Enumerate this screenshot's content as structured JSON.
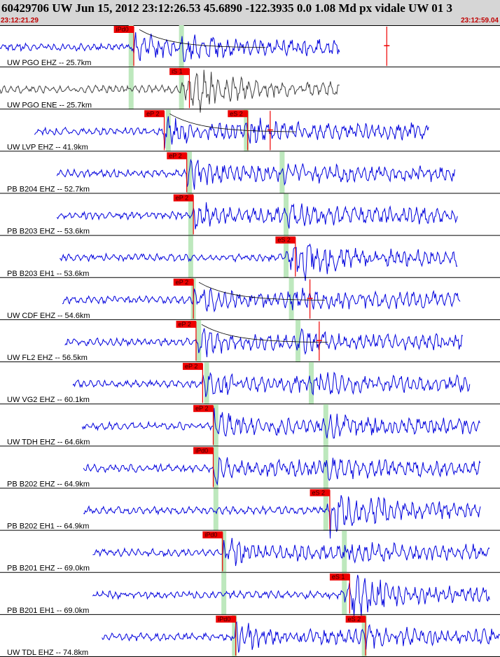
{
  "header": {
    "title": "60429706 UW Jun 15, 2012 23:12:26.53   45.6890 -122.3935  0.0 1.08 Md px vidale UW 01   3",
    "time_start": "23:12:21.29",
    "time_end": "23:12:59.04"
  },
  "colors": {
    "trace": "#0000dd",
    "trace_unused": "#404040",
    "pick_fill": "#ee0000",
    "pick_text": "#330000",
    "green_band": "#bde8bd",
    "separator": "#000000",
    "background": "#ffffff",
    "header_bg": "#d6d6d6",
    "time_label": "#c00000"
  },
  "chart_data": {
    "type": "line",
    "x_unit": "seconds after 23:12:21.29",
    "xlim": [
      0,
      37.75
    ],
    "channels": [
      {
        "label": "UW PGO EHZ -- 25.7km",
        "start": 0,
        "end": 25.7,
        "color": "blue",
        "picks": [
          {
            "label": "iPd0",
            "t": 10.1
          },
          {
            "label": "",
            "t": 29.2
          }
        ],
        "bands": [
          9.9,
          13.7
        ],
        "coda": true
      },
      {
        "label": "UW PGO ENE -- 25.7km",
        "start": 0,
        "end": 25.7,
        "color": "gray",
        "picks": [
          {
            "label": "iS 1",
            "t": 14.3
          }
        ],
        "bands": [
          9.9,
          13.7
        ],
        "coda": false
      },
      {
        "label": "UW LVP EHZ -- 41.9km",
        "start": 2.6,
        "end": 32.4,
        "color": "blue",
        "picks": [
          {
            "label": "eP 2",
            "t": 12.4
          },
          {
            "label": "eS 2",
            "t": 18.7
          },
          {
            "label": "",
            "t": 20.4
          }
        ],
        "bands": [
          12.7,
          18.6
        ],
        "coda": true
      },
      {
        "label": "PB B204 EHZ -- 52.7km",
        "start": 4.3,
        "end": 34.4,
        "color": "blue",
        "picks": [
          {
            "label": "eP 2",
            "t": 14.1
          }
        ],
        "bands": [
          14.3,
          21.3
        ],
        "coda": false
      },
      {
        "label": "PB B203 EHZ -- 53.6km",
        "start": 4.3,
        "end": 34.6,
        "color": "blue",
        "picks": [
          {
            "label": "eP 2",
            "t": 14.6
          }
        ],
        "bands": [
          14.4,
          21.6
        ],
        "coda": false
      },
      {
        "label": "PB B203 EH1 -- 53.6km",
        "start": 4.5,
        "end": 34.6,
        "color": "blue",
        "picks": [
          {
            "label": "eS 2",
            "t": 22.3
          }
        ],
        "bands": [
          14.4,
          21.6
        ],
        "coda": false
      },
      {
        "label": "UW CDF EHZ -- 54.6km",
        "start": 4.7,
        "end": 34.8,
        "color": "blue",
        "picks": [
          {
            "label": "eP 2",
            "t": 14.6
          },
          {
            "label": "",
            "t": 23.4
          }
        ],
        "bands": [
          14.6,
          22.0
        ],
        "coda": true
      },
      {
        "label": "UW FL2 EHZ -- 56.5km",
        "start": 4.9,
        "end": 35.0,
        "color": "blue",
        "picks": [
          {
            "label": "eP 2",
            "t": 14.8
          },
          {
            "label": "",
            "t": 24.1
          }
        ],
        "bands": [
          15.0,
          22.5
        ],
        "coda": true
      },
      {
        "label": "UW VG2 EHZ -- 60.1km",
        "start": 5.5,
        "end": 35.5,
        "color": "blue",
        "picks": [
          {
            "label": "eP 2",
            "t": 15.3
          }
        ],
        "bands": [
          15.6,
          23.5
        ],
        "coda": false
      },
      {
        "label": "UW TDH EHZ -- 64.6km",
        "start": 6.2,
        "end": 36.3,
        "color": "blue",
        "picks": [
          {
            "label": "eP 2",
            "t": 16.1
          }
        ],
        "bands": [
          16.3,
          24.6
        ],
        "coda": false
      },
      {
        "label": "PB B202 EHZ -- 64.9km",
        "start": 6.3,
        "end": 36.3,
        "color": "blue",
        "picks": [
          {
            "label": "iPd0",
            "t": 16.1
          }
        ],
        "bands": [
          16.3,
          24.6
        ],
        "coda": false
      },
      {
        "label": "PB B202 EH1 -- 64.9km",
        "start": 6.3,
        "end": 36.3,
        "color": "blue",
        "picks": [
          {
            "label": "eS 2",
            "t": 24.9
          }
        ],
        "bands": [
          16.3,
          24.6
        ],
        "coda": false
      },
      {
        "label": "PB B201 EHZ -- 69.0km",
        "start": 7.0,
        "end": 37.0,
        "color": "blue",
        "picks": [
          {
            "label": "iPd0",
            "t": 16.8
          }
        ],
        "bands": [
          16.9,
          26.0
        ],
        "coda": false
      },
      {
        "label": "PB B201 EH1 -- 69.0km",
        "start": 7.0,
        "end": 37.0,
        "color": "blue",
        "picks": [
          {
            "label": "eS 1",
            "t": 26.4
          }
        ],
        "bands": [
          16.9,
          26.0
        ],
        "coda": false
      },
      {
        "label": "UW TDL EHZ -- 74.8km",
        "start": 7.7,
        "end": 37.75,
        "color": "blue",
        "picks": [
          {
            "label": "iPd0",
            "t": 17.8
          },
          {
            "label": "eS 2",
            "t": 27.6
          }
        ],
        "bands": [
          17.7,
          27.5
        ],
        "coda": false
      }
    ]
  }
}
